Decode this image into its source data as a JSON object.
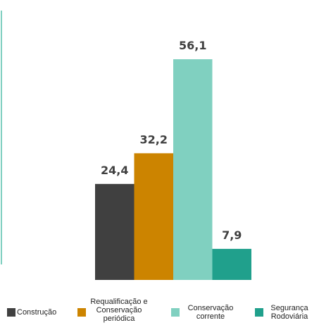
{
  "chart_data": {
    "type": "bar",
    "series": [
      {
        "name": "Construção",
        "color": "#404040",
        "values": [
          24.4
        ],
        "value_labels": [
          "24,4"
        ]
      },
      {
        "name": "Requalificação e Conservação periódica",
        "color": "#cc8400",
        "values": [
          32.2
        ],
        "value_labels": [
          "32,2"
        ]
      },
      {
        "name": "Conservação corrente",
        "color": "#80d0c0",
        "values": [
          56.1
        ],
        "value_labels": [
          "56,1"
        ]
      },
      {
        "name": "Segurança Rodoviária",
        "color": "#20a08c",
        "values": [
          7.9
        ],
        "value_labels": [
          "7,9"
        ]
      }
    ]
  }
}
